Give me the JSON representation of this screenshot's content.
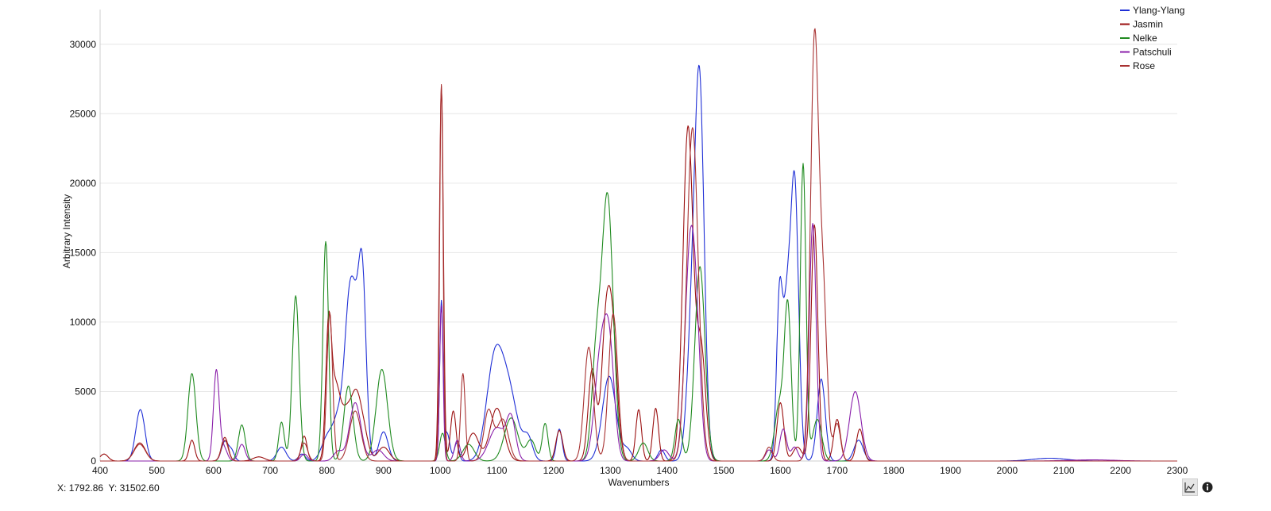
{
  "coordinate_readout": {
    "x_label": "X:",
    "x_value": "1792.86",
    "y_label": "Y:",
    "y_value": "31502.60"
  },
  "toolbar": {
    "chart_icon": "line-chart-icon",
    "info_icon": "info-icon"
  },
  "chart_data": {
    "type": "line",
    "title": "",
    "xlabel": "Wavenumbers",
    "ylabel": "Arbitrary Intensity",
    "xlim": [
      400,
      2300
    ],
    "ylim": [
      0,
      32500
    ],
    "x_ticks": [
      400,
      500,
      600,
      700,
      800,
      900,
      1000,
      1100,
      1200,
      1300,
      1400,
      1500,
      1600,
      1700,
      1800,
      1900,
      2000,
      2100,
      2200,
      2300
    ],
    "y_ticks": [
      0,
      5000,
      10000,
      15000,
      20000,
      25000,
      30000
    ],
    "grid": "horizontal",
    "legend_position": "top-right",
    "series": [
      {
        "name": "Ylang-Ylang",
        "color": "#1f2fd6",
        "peaks": [
          [
            471,
            3700,
            8
          ],
          [
            620,
            1400,
            6
          ],
          [
            632,
            700,
            5
          ],
          [
            720,
            1000,
            8
          ],
          [
            756,
            500,
            6
          ],
          [
            800,
            1500,
            10
          ],
          [
            825,
            3800,
            12
          ],
          [
            838,
            7000,
            7
          ],
          [
            848,
            8100,
            7
          ],
          [
            862,
            13900,
            7
          ],
          [
            900,
            2100,
            8
          ],
          [
            1002,
            11300,
            3
          ],
          [
            1012,
            2000,
            5
          ],
          [
            1029,
            1300,
            4
          ],
          [
            1095,
            6500,
            14
          ],
          [
            1120,
            5000,
            16
          ],
          [
            1155,
            1500,
            8
          ],
          [
            1210,
            2300,
            5
          ],
          [
            1298,
            6100,
            12
          ],
          [
            1330,
            800,
            8
          ],
          [
            1390,
            800,
            6
          ],
          [
            1445,
            10000,
            9
          ],
          [
            1458,
            24500,
            8
          ],
          [
            1598,
            9900,
            5
          ],
          [
            1605,
            4000,
            7
          ],
          [
            1612,
            7500,
            6
          ],
          [
            1625,
            20000,
            7
          ],
          [
            1672,
            5900,
            7
          ],
          [
            1738,
            1500,
            8
          ],
          [
            2075,
            200,
            30
          ]
        ]
      },
      {
        "name": "Jasmin",
        "color": "#9b1010",
        "peaks": [
          [
            407,
            500,
            7
          ],
          [
            470,
            1300,
            10
          ],
          [
            562,
            1500,
            5
          ],
          [
            620,
            1700,
            6
          ],
          [
            680,
            300,
            10
          ],
          [
            760,
            1800,
            5
          ],
          [
            803,
            9000,
            5
          ],
          [
            815,
            5000,
            8
          ],
          [
            835,
            3500,
            10
          ],
          [
            852,
            3800,
            8
          ],
          [
            865,
            2000,
            8
          ],
          [
            900,
            1000,
            10
          ],
          [
            1002,
            27000,
            3.5
          ],
          [
            1023,
            3600,
            5
          ],
          [
            1058,
            2000,
            10
          ],
          [
            1100,
            3800,
            12
          ],
          [
            1210,
            2200,
            6
          ],
          [
            1268,
            6600,
            7
          ],
          [
            1290,
            6000,
            7
          ],
          [
            1302,
            10500,
            9
          ],
          [
            1350,
            3700,
            5
          ],
          [
            1380,
            3800,
            5
          ],
          [
            1437,
            24000,
            9
          ],
          [
            1460,
            8000,
            8
          ],
          [
            1600,
            4200,
            6
          ],
          [
            1630,
            1000,
            8
          ],
          [
            1660,
            17000,
            6
          ],
          [
            1700,
            3000,
            6
          ],
          [
            1740,
            2300,
            6
          ]
        ]
      },
      {
        "name": "Nelke",
        "color": "#1f8a1f",
        "peaks": [
          [
            562,
            6300,
            7
          ],
          [
            650,
            2600,
            6
          ],
          [
            720,
            2800,
            5
          ],
          [
            745,
            11900,
            6
          ],
          [
            798,
            15800,
            5
          ],
          [
            838,
            5400,
            8
          ],
          [
            897,
            6600,
            10
          ],
          [
            1004,
            2000,
            5
          ],
          [
            1050,
            1200,
            10
          ],
          [
            1125,
            3100,
            12
          ],
          [
            1160,
            1500,
            8
          ],
          [
            1185,
            2700,
            5
          ],
          [
            1275,
            7000,
            8
          ],
          [
            1295,
            19000,
            10
          ],
          [
            1358,
            1300,
            8
          ],
          [
            1420,
            3000,
            6
          ],
          [
            1458,
            14000,
            9
          ],
          [
            1598,
            4000,
            8
          ],
          [
            1613,
            10900,
            6
          ],
          [
            1640,
            21400,
            5
          ],
          [
            1665,
            3000,
            8
          ]
        ]
      },
      {
        "name": "Patschuli",
        "color": "#8a1faa",
        "peaks": [
          [
            605,
            6500,
            5
          ],
          [
            618,
            1000,
            6
          ],
          [
            650,
            1200,
            6
          ],
          [
            760,
            500,
            6
          ],
          [
            820,
            700,
            8
          ],
          [
            850,
            4200,
            10
          ],
          [
            890,
            800,
            10
          ],
          [
            1002,
            11200,
            3
          ],
          [
            1030,
            1500,
            5
          ],
          [
            1100,
            2400,
            14
          ],
          [
            1125,
            2900,
            8
          ],
          [
            1282,
            7000,
            10
          ],
          [
            1298,
            7900,
            9
          ],
          [
            1395,
            800,
            8
          ],
          [
            1440,
            14000,
            9
          ],
          [
            1452,
            7000,
            8
          ],
          [
            1580,
            800,
            6
          ],
          [
            1605,
            2300,
            6
          ],
          [
            1625,
            1000,
            6
          ],
          [
            1657,
            17100,
            6
          ],
          [
            1732,
            5000,
            10
          ],
          [
            2150,
            80,
            40
          ]
        ]
      },
      {
        "name": "Rose",
        "color": "#a83232",
        "peaks": [
          [
            470,
            1200,
            10
          ],
          [
            620,
            1500,
            6
          ],
          [
            760,
            1300,
            6
          ],
          [
            805,
            10700,
            5
          ],
          [
            850,
            3600,
            10
          ],
          [
            1002,
            27100,
            3
          ],
          [
            1040,
            6300,
            4
          ],
          [
            1085,
            3600,
            8
          ],
          [
            1110,
            3000,
            10
          ],
          [
            1262,
            8200,
            8
          ],
          [
            1305,
            10600,
            8
          ],
          [
            1445,
            24000,
            10
          ],
          [
            1580,
            1000,
            6
          ],
          [
            1660,
            29800,
            7
          ],
          [
            1675,
            12000,
            7
          ],
          [
            1700,
            2700,
            6
          ]
        ]
      }
    ]
  }
}
